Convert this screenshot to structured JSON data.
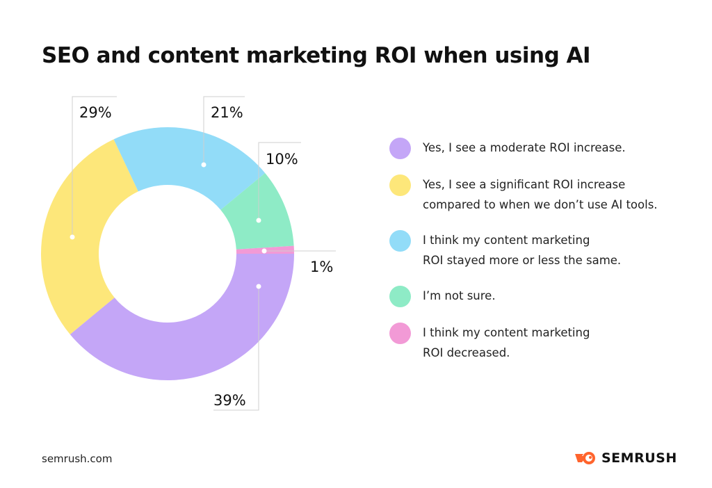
{
  "chart_data": {
    "type": "pie",
    "variant": "donut",
    "title": "SEO and content marketing ROI when using AI",
    "slices": [
      {
        "label": "Yes, I see a moderate ROI increase.",
        "value": 39,
        "display": "39%",
        "color": "#c4a6f7"
      },
      {
        "label": "Yes, I see a significant ROI increase compared to when we don't use AI tools.",
        "value": 29,
        "display": "29%",
        "color": "#fde77a"
      },
      {
        "label": "I think my content marketing ROI stayed more or less the same.",
        "value": 21,
        "display": "21%",
        "color": "#92dcf8"
      },
      {
        "label": "I'm not sure.",
        "value": 10,
        "display": "10%",
        "color": "#8eebc6"
      },
      {
        "label": "I think my content marketing ROI decreased.",
        "value": 1,
        "display": "1%",
        "color": "#f29ad6"
      }
    ],
    "legend_lines": [
      [
        "Yes, I see a moderate ROI increase."
      ],
      [
        "Yes, I see a significant ROI increase",
        "compared to when we don’t use AI tools."
      ],
      [
        "I think my content marketing",
        "ROI stayed more or less the same."
      ],
      [
        "I’m not sure."
      ],
      [
        "I think my content marketing",
        "ROI decreased."
      ]
    ],
    "legend_placement": "right"
  },
  "footer": {
    "source": "semrush.com",
    "brand": "SEMRUSH"
  }
}
